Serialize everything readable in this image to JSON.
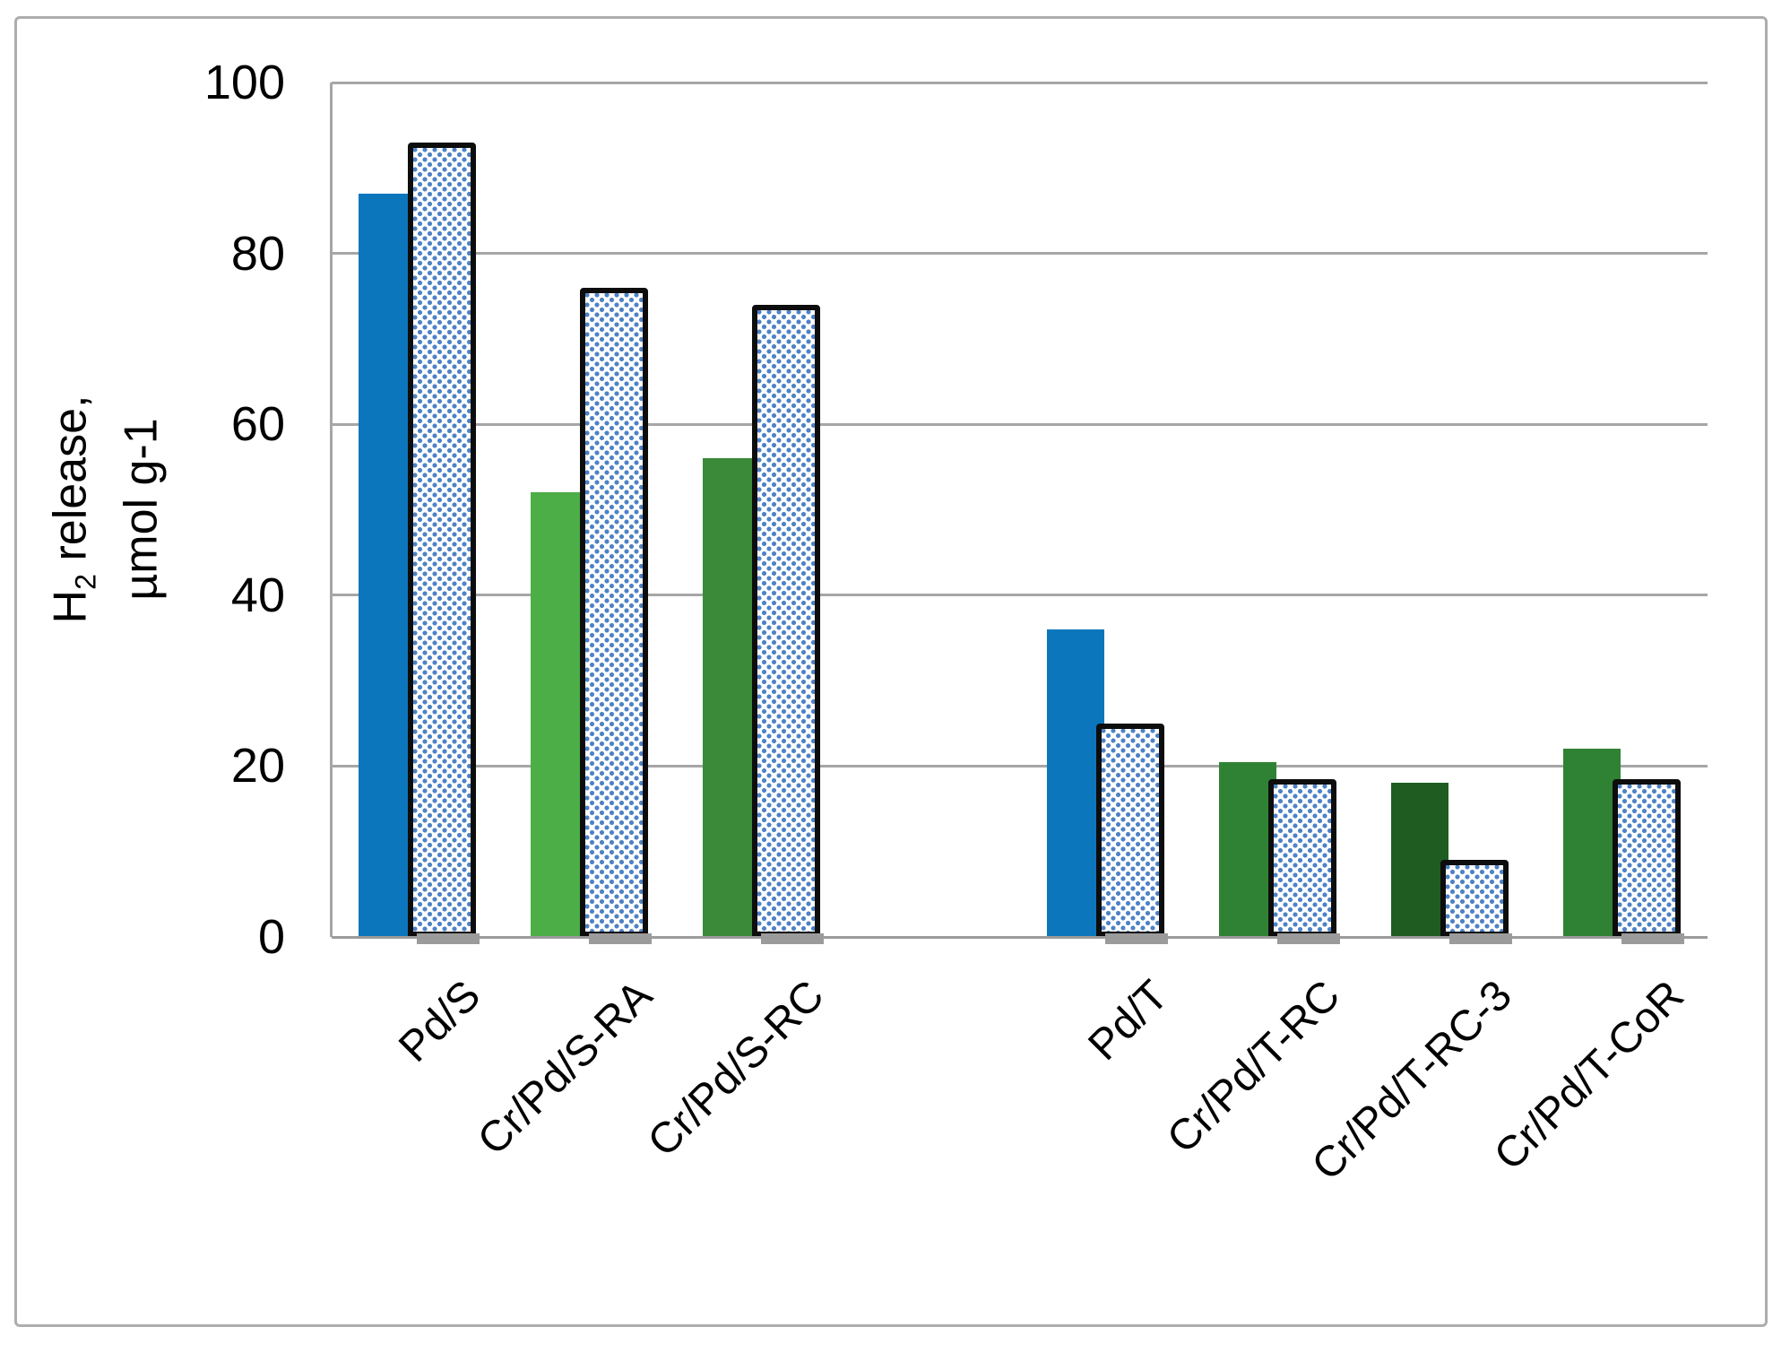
{
  "accent_colors": {
    "blue": "#0B76BC",
    "green_light": "#4BAE46",
    "green_mid": "#3A8A3A",
    "green_dark": "#2F8233",
    "green_darkest": "#1F5C22",
    "dot_blue": "#4D82C6",
    "gridline_gray": "#A6A6A6",
    "frame_gray": "#ADADAD",
    "shadow_gray": "#9B9B9B",
    "outline_black": "#0d0d0d"
  },
  "chart_data": {
    "type": "bar",
    "title": "",
    "xlabel": "",
    "ylabel": {
      "prefix": "H",
      "sub": "2",
      "suffix": " release,",
      "line2": "µmol g-1"
    },
    "ylim": [
      0,
      100
    ],
    "yticks": [
      0,
      20,
      40,
      60,
      80,
      100
    ],
    "grid": true,
    "legend": "none",
    "categories": [
      "Pd/S",
      "Cr/Pd/S-RA",
      "Cr/Pd/S-RC",
      "",
      "Pd/T",
      "Cr/Pd/T-RC",
      "Cr/Pd/T-RC-3",
      "Cr/Pd/T-CoR"
    ],
    "solid_bar_colors": [
      "#0B76BC",
      "#4BAE46",
      "#3A8A3A",
      null,
      "#0B76BC",
      "#2F8233",
      "#1F5C22",
      "#2F8233"
    ],
    "series": [
      {
        "name": "solid-fill",
        "values": [
          87,
          52,
          56,
          null,
          36,
          20.5,
          18,
          22
        ]
      },
      {
        "name": "dotted-pattern",
        "values": [
          93,
          76,
          74,
          null,
          25,
          18.5,
          9,
          18.5
        ]
      }
    ]
  }
}
